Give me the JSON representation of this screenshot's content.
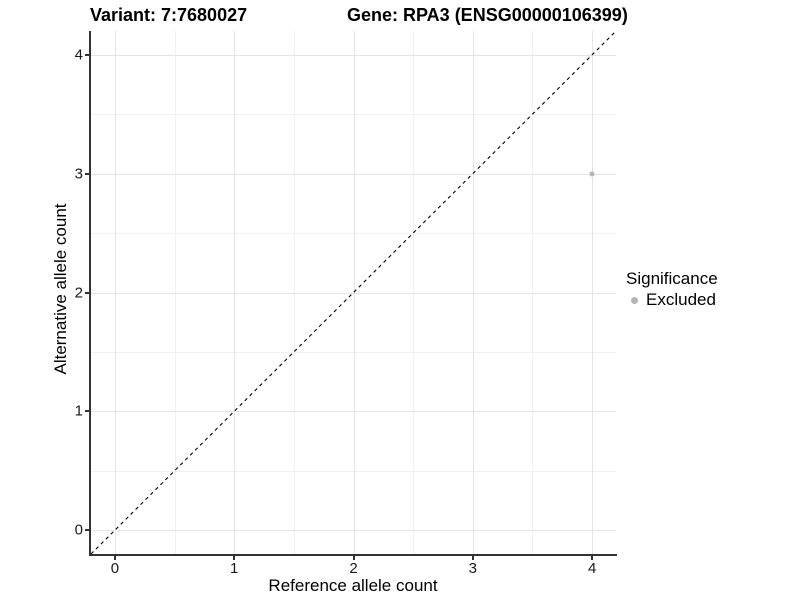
{
  "chart_data": {
    "type": "scatter",
    "title_left": "Variant: 7:7680027",
    "title_right": "Gene: RPA3 (ENSG00000106399)",
    "xlabel": "Reference allele count",
    "ylabel": "Alternative allele count",
    "xlim": [
      -0.2,
      4.2
    ],
    "ylim": [
      -0.2,
      4.2
    ],
    "x_ticks": [
      0,
      1,
      2,
      3,
      4
    ],
    "y_ticks": [
      0,
      1,
      2,
      3,
      4
    ],
    "x_minor": [
      0.5,
      1.5,
      2.5,
      3.5
    ],
    "y_minor": [
      0.5,
      1.5,
      2.5,
      3.5
    ],
    "grid": true,
    "identity_line": {
      "from": [
        -0.2,
        -0.2
      ],
      "to": [
        4.2,
        4.2
      ],
      "style": "dashed",
      "color": "#000000"
    },
    "points": [
      {
        "x": 4,
        "y": 3,
        "series": "Excluded",
        "color": "#b5b5b5",
        "size": 5
      }
    ],
    "legend": {
      "position": "right",
      "title": "Significance",
      "entries": [
        {
          "label": "Excluded",
          "color": "#b5b5b5"
        }
      ]
    },
    "colors": {
      "major_grid": "#e4e4e4",
      "minor_grid": "#f1f1f1",
      "axis_line": "#333333",
      "tick": "#333333",
      "text": "#000000"
    }
  }
}
